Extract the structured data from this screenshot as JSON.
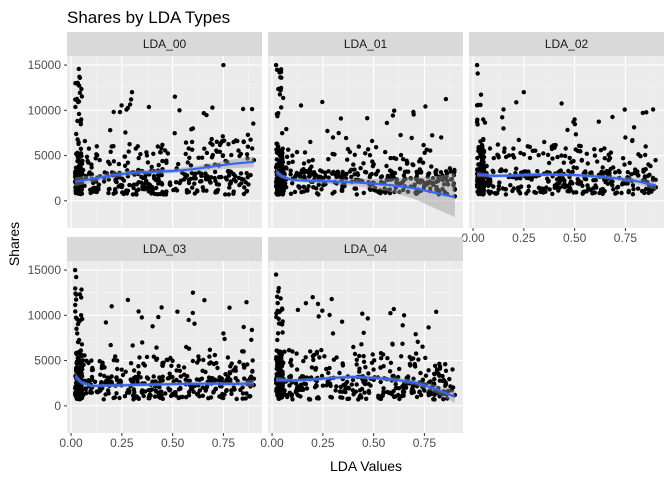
{
  "chart_data": {
    "type": "scatter",
    "title": "Shares by LDA Types",
    "xlabel": "LDA Values",
    "ylabel": "Shares",
    "xlim": [
      -0.02,
      0.94
    ],
    "ylim": [
      -3000,
      16000
    ],
    "x_ticks": [
      0,
      0.25,
      0.5,
      0.75
    ],
    "x_tick_labels": [
      "0.00",
      "0.25",
      "0.50",
      "0.75"
    ],
    "y_ticks": [
      0,
      5000,
      10000,
      15000
    ],
    "y_tick_labels": [
      "0",
      "5000",
      "10000",
      "15000"
    ],
    "grid": true,
    "smoother": "loess with confidence band",
    "colors": {
      "panel_bg": "#ebebeb",
      "strip_bg": "#d9d9d9",
      "grid_major": "#ffffff",
      "point": "#000000",
      "smooth_line": "#3366ff",
      "ribbon": "#999999"
    },
    "panels": [
      {
        "name": "LDA_00",
        "points_sample": [
          [
            0.02,
            2100
          ],
          [
            0.05,
            9000
          ],
          [
            0.1,
            4000
          ],
          [
            0.2,
            6000
          ],
          [
            0.3,
            12000
          ],
          [
            0.45,
            3500
          ],
          [
            0.6,
            8000
          ],
          [
            0.75,
            15000
          ],
          [
            0.85,
            6500
          ],
          [
            0.9,
            4500
          ]
        ],
        "smooth_x": [
          0.02,
          0.1,
          0.2,
          0.3,
          0.4,
          0.5,
          0.6,
          0.7,
          0.8,
          0.9
        ],
        "smooth_y": [
          2100,
          2400,
          2800,
          3100,
          3200,
          3300,
          3500,
          3800,
          4100,
          4300
        ],
        "band_lo": [
          1600,
          2000,
          2500,
          2800,
          2950,
          3050,
          3200,
          3400,
          3600,
          3700
        ],
        "band_hi": [
          2600,
          2800,
          3100,
          3400,
          3450,
          3550,
          3800,
          4200,
          4600,
          4900
        ]
      },
      {
        "name": "LDA_01",
        "points_sample": [
          [
            0.02,
            15000
          ],
          [
            0.03,
            6000
          ],
          [
            0.1,
            5000
          ],
          [
            0.2,
            3000
          ],
          [
            0.3,
            7000
          ],
          [
            0.4,
            4000
          ],
          [
            0.5,
            2000
          ],
          [
            0.7,
            1500
          ],
          [
            0.85,
            1000
          ],
          [
            0.9,
            500
          ]
        ],
        "smooth_x": [
          0.02,
          0.05,
          0.1,
          0.2,
          0.3,
          0.4,
          0.5,
          0.6,
          0.7,
          0.8,
          0.9
        ],
        "smooth_y": [
          3200,
          2700,
          2300,
          2200,
          2150,
          2050,
          1900,
          1700,
          1400,
          900,
          400
        ],
        "band_lo": [
          2800,
          2450,
          2100,
          1950,
          1850,
          1650,
          1350,
          900,
          200,
          -800,
          -1800
        ],
        "band_hi": [
          3600,
          2950,
          2500,
          2450,
          2450,
          2450,
          2450,
          2500,
          2600,
          2700,
          3000
        ]
      },
      {
        "name": "LDA_02",
        "points_sample": [
          [
            0.02,
            15000
          ],
          [
            0.05,
            9000
          ],
          [
            0.15,
            8000
          ],
          [
            0.25,
            12000
          ],
          [
            0.35,
            6500
          ],
          [
            0.5,
            9000
          ],
          [
            0.6,
            5000
          ],
          [
            0.75,
            7000
          ],
          [
            0.85,
            3500
          ],
          [
            0.9,
            1500
          ]
        ],
        "smooth_x": [
          0.02,
          0.1,
          0.2,
          0.3,
          0.4,
          0.5,
          0.6,
          0.7,
          0.8,
          0.9
        ],
        "smooth_y": [
          2900,
          2750,
          2800,
          2900,
          2900,
          2850,
          2700,
          2500,
          2200,
          1700
        ],
        "band_lo": [
          2600,
          2550,
          2600,
          2700,
          2700,
          2650,
          2500,
          2250,
          1850,
          1200
        ],
        "band_hi": [
          3200,
          2950,
          3000,
          3100,
          3100,
          3050,
          2900,
          2750,
          2550,
          2200
        ]
      },
      {
        "name": "LDA_03",
        "points_sample": [
          [
            0.02,
            15000
          ],
          [
            0.03,
            8000
          ],
          [
            0.1,
            5000
          ],
          [
            0.2,
            11000
          ],
          [
            0.35,
            7000
          ],
          [
            0.45,
            4500
          ],
          [
            0.6,
            12500
          ],
          [
            0.75,
            8000
          ],
          [
            0.85,
            6000
          ],
          [
            0.9,
            3000
          ]
        ],
        "smooth_x": [
          0.02,
          0.05,
          0.1,
          0.2,
          0.3,
          0.4,
          0.5,
          0.6,
          0.7,
          0.8,
          0.9
        ],
        "smooth_y": [
          3300,
          2600,
          2200,
          2250,
          2300,
          2350,
          2400,
          2450,
          2450,
          2400,
          2500
        ],
        "band_lo": [
          2900,
          2350,
          2000,
          2050,
          2100,
          2150,
          2200,
          2250,
          2250,
          2150,
          2100
        ],
        "band_hi": [
          3700,
          2850,
          2400,
          2450,
          2500,
          2550,
          2600,
          2650,
          2650,
          2650,
          2900
        ]
      },
      {
        "name": "LDA_04",
        "points_sample": [
          [
            0.02,
            14500
          ],
          [
            0.05,
            9000
          ],
          [
            0.1,
            6000
          ],
          [
            0.2,
            12000
          ],
          [
            0.3,
            8000
          ],
          [
            0.4,
            6500
          ],
          [
            0.5,
            4000
          ],
          [
            0.65,
            10000
          ],
          [
            0.8,
            3500
          ],
          [
            0.9,
            1200
          ]
        ],
        "smooth_x": [
          0.02,
          0.1,
          0.2,
          0.3,
          0.4,
          0.5,
          0.6,
          0.7,
          0.8,
          0.9
        ],
        "smooth_y": [
          2900,
          2800,
          2900,
          3100,
          3200,
          3100,
          2900,
          2600,
          1900,
          1000
        ],
        "band_lo": [
          2600,
          2600,
          2700,
          2900,
          3000,
          2900,
          2650,
          2300,
          1500,
          300
        ],
        "band_hi": [
          3200,
          3000,
          3100,
          3300,
          3400,
          3300,
          3150,
          2900,
          2300,
          1700
        ]
      }
    ]
  }
}
